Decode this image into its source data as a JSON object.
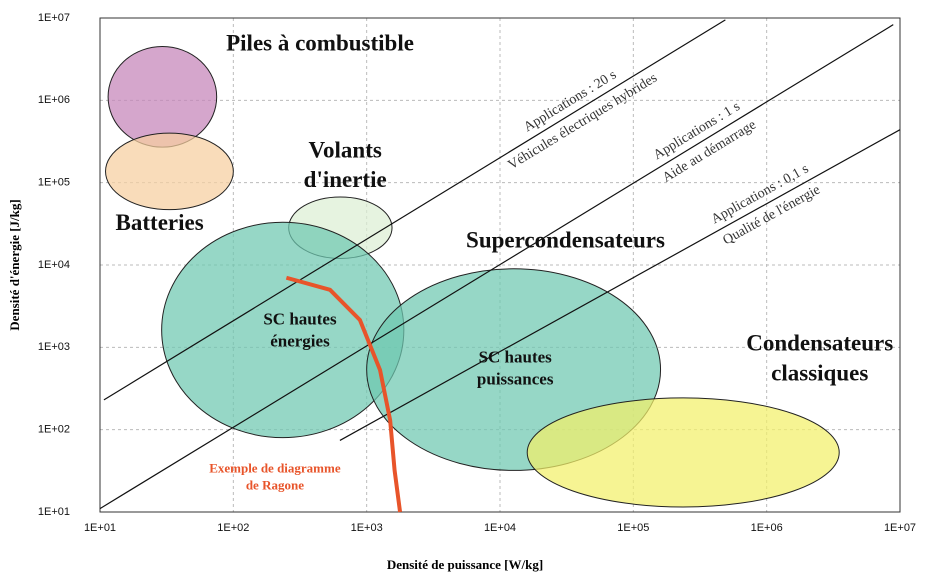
{
  "chart_data": {
    "type": "ragone",
    "x_label": "Densité de puissance [W/kg]",
    "y_label": "Densité d'énergie [J/kg]",
    "log_x": true,
    "log_y": true,
    "grid": true,
    "xlim": [
      10,
      10000000
    ],
    "ylim": [
      10,
      10000000
    ],
    "xticks": [
      {
        "value": 10,
        "label": "1E+01"
      },
      {
        "value": 100,
        "label": "1E+02"
      },
      {
        "value": 1000,
        "label": "1E+03"
      },
      {
        "value": 10000,
        "label": "1E+04"
      },
      {
        "value": 100000,
        "label": "1E+05"
      },
      {
        "value": 1000000,
        "label": "1E+06"
      },
      {
        "value": 10000000,
        "label": "1E+07"
      }
    ],
    "yticks": [
      {
        "value": 10,
        "label": "1E+01"
      },
      {
        "value": 100,
        "label": "1E+02"
      },
      {
        "value": 1000,
        "label": "1E+03"
      },
      {
        "value": 10000,
        "label": "1E+04"
      },
      {
        "value": 100000,
        "label": "1E+05"
      },
      {
        "value": 1000000,
        "label": "1E+06"
      },
      {
        "value": 10000000,
        "label": "1E+07"
      }
    ],
    "regions": [
      {
        "color": "#c583b8",
        "xrange": [
          11.5,
          75
        ],
        "yrange": [
          270000,
          4500000
        ]
      },
      {
        "color": "#f7cfa0",
        "xrange": [
          11,
          100
        ],
        "yrange": [
          47000,
          400000
        ]
      },
      {
        "color": "#dcefd4",
        "xrange": [
          260,
          1550
        ],
        "yrange": [
          12000,
          67000
        ]
      },
      {
        "color": "#6ec8b0",
        "xrange": [
          29,
          1900
        ],
        "yrange": [
          80,
          33000
        ],
        "label": [
          "SC hautes",
          "énergies"
        ],
        "label_x": 316,
        "label_y": 1550
      },
      {
        "color": "#6ec8b0",
        "xrange": [
          1000,
          160000
        ],
        "yrange": [
          32,
          9000
        ],
        "label": [
          "SC hautes",
          "puissances"
        ],
        "label_x": 13000,
        "label_y": 535
      },
      {
        "color": "#f2f06a",
        "xrange": [
          16000,
          3500000
        ],
        "yrange": [
          11.5,
          243
        ]
      }
    ],
    "annotations": [
      {
        "text": [
          "Piles à combustible"
        ],
        "x": 447,
        "y": 4700000
      },
      {
        "text": [
          "Batteries"
        ],
        "x": 28,
        "y": 31000
      },
      {
        "text": [
          "Volants",
          "d'inertie"
        ],
        "x": 690,
        "y": 155000
      },
      {
        "text": [
          "Supercondensateurs"
        ],
        "x": 31000,
        "y": 19000
      },
      {
        "text": [
          "Condensateurs",
          "classiques"
        ],
        "x": 2500000,
        "y": 700
      }
    ],
    "time_lines": [
      {
        "x": [
          10.7,
          490000
        ],
        "y": [
          230,
          9500000
        ],
        "label": [
          "Applications : 20 s",
          "Véhicules électriques hybrides"
        ]
      },
      {
        "x": [
          10,
          8900000
        ],
        "y": [
          11,
          8300000
        ],
        "label": [
          "Applications : 1 s",
          "Aide au démarrage"
        ]
      },
      {
        "x": [
          630,
          10000000
        ],
        "y": [
          74,
          440000
        ],
        "label": [
          "Applications : 0,1 s",
          "Qualité de l'énergie"
        ]
      }
    ],
    "ragone": {
      "color": "#e8542a",
      "x": [
        250,
        531,
        890,
        1260,
        1500,
        1620,
        1780
      ],
      "y": [
        7000,
        5000,
        2150,
        530,
        130,
        32,
        10
      ],
      "label": [
        "Exemple de diagramme",
        "de Ragone"
      ],
      "label_x": 205,
      "label_y": 26
    }
  }
}
